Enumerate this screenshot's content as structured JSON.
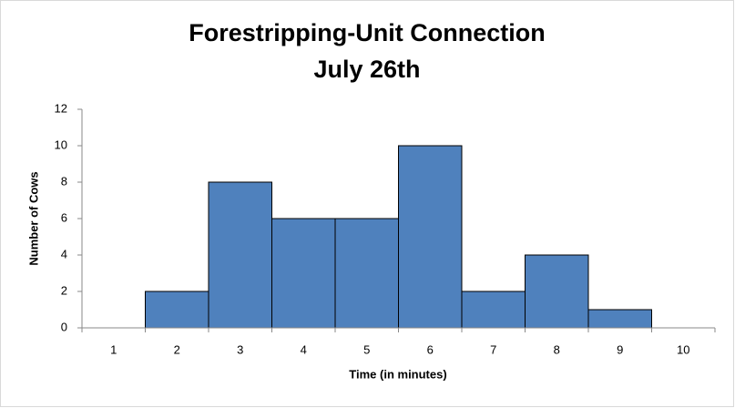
{
  "chart_data": {
    "type": "bar",
    "title": "Forestripping-Unit Connection",
    "subtitle": "July 26th",
    "x_label": "Time (in minutes)",
    "y_label": "Number of Cows",
    "categories": [
      "1",
      "2",
      "3",
      "4",
      "5",
      "6",
      "7",
      "8",
      "9",
      "10"
    ],
    "values": [
      0,
      2,
      8,
      6,
      6,
      10,
      2,
      4,
      1,
      0
    ],
    "color": "#4f81bd",
    "ylim": [
      0,
      12
    ],
    "yticks": [
      0,
      2,
      4,
      6,
      8,
      10,
      12
    ],
    "grid": false
  }
}
